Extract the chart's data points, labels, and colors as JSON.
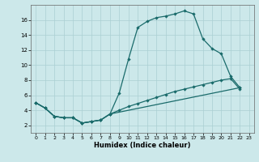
{
  "xlabel": "Humidex (Indice chaleur)",
  "bg_color": "#cce8ea",
  "grid_color": "#aacfd2",
  "line_color": "#1a6b6b",
  "xlim": [
    -0.5,
    23.5
  ],
  "ylim": [
    1.0,
    18.0
  ],
  "xticks": [
    0,
    1,
    2,
    3,
    4,
    5,
    6,
    7,
    8,
    9,
    10,
    11,
    12,
    13,
    14,
    15,
    16,
    17,
    18,
    19,
    20,
    21,
    22,
    23
  ],
  "yticks": [
    2,
    4,
    6,
    8,
    10,
    12,
    14,
    16
  ],
  "top_x": [
    0,
    1,
    2,
    3,
    4,
    5,
    6,
    7,
    8,
    9,
    10,
    11,
    12,
    13,
    14,
    15,
    16,
    17,
    18,
    19,
    20,
    21,
    22
  ],
  "top_y": [
    5.0,
    4.3,
    3.2,
    3.0,
    3.0,
    2.3,
    2.5,
    2.7,
    3.5,
    6.3,
    10.8,
    15.0,
    15.8,
    16.3,
    16.5,
    16.8,
    17.2,
    16.8,
    13.5,
    12.2,
    11.5,
    8.5,
    7.0
  ],
  "mid_x": [
    0,
    1,
    2,
    3,
    4,
    5,
    6,
    7,
    8,
    9,
    10,
    11,
    12,
    13,
    14,
    15,
    16,
    17,
    18,
    19,
    20,
    21,
    22
  ],
  "mid_y": [
    5.0,
    4.3,
    3.2,
    3.0,
    3.0,
    2.3,
    2.5,
    2.7,
    3.5,
    4.0,
    4.5,
    4.9,
    5.3,
    5.7,
    6.1,
    6.5,
    6.8,
    7.1,
    7.4,
    7.7,
    8.0,
    8.2,
    6.8
  ],
  "bot_x": [
    0,
    1,
    2,
    3,
    4,
    5,
    6,
    7,
    8,
    22
  ],
  "bot_y": [
    5.0,
    4.3,
    3.2,
    3.0,
    3.0,
    2.3,
    2.5,
    2.7,
    3.5,
    7.0
  ]
}
